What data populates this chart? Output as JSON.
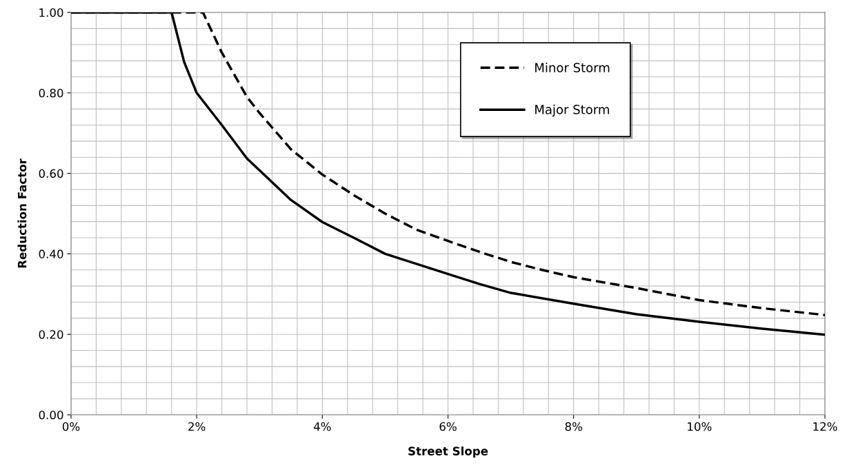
{
  "chart_data": {
    "type": "line",
    "xlabel": "Street Slope",
    "ylabel": "Reduction Factor",
    "xlim": [
      0,
      12
    ],
    "ylim": [
      0,
      1
    ],
    "xticks": [
      {
        "value": 0,
        "label": "0%"
      },
      {
        "value": 2,
        "label": "2%"
      },
      {
        "value": 4,
        "label": "4%"
      },
      {
        "value": 6,
        "label": "6%"
      },
      {
        "value": 8,
        "label": "8%"
      },
      {
        "value": 10,
        "label": "10%"
      },
      {
        "value": 12,
        "label": "12%"
      }
    ],
    "yticks": [
      {
        "value": 0,
        "label": "0.00"
      },
      {
        "value": 0.2,
        "label": "0.20"
      },
      {
        "value": 0.4,
        "label": "0.40"
      },
      {
        "value": 0.6,
        "label": "0.60"
      },
      {
        "value": 0.8,
        "label": "0.80"
      },
      {
        "value": 1,
        "label": "1.00"
      }
    ],
    "grid": true,
    "legend": "top right",
    "marker": "none",
    "series": [
      {
        "name": "Minor Storm",
        "color": "#000000",
        "line_style": "dashed",
        "x": [
          0,
          2.1,
          2.4,
          2.8,
          3,
          3.5,
          4,
          4.5,
          5,
          5.5,
          6,
          6.5,
          7,
          7.5,
          8,
          9,
          10,
          11,
          12
        ],
        "values": [
          1,
          1,
          0.9,
          0.79,
          0.75,
          0.66,
          0.597,
          0.546,
          0.5,
          0.46,
          0.432,
          0.405,
          0.38,
          0.36,
          0.342,
          0.315,
          0.285,
          0.265,
          0.248
        ]
      },
      {
        "name": "Major Storm",
        "color": "#000000",
        "line_style": "solid",
        "x": [
          0,
          1.6,
          1.8,
          2,
          2.4,
          2.8,
          3.5,
          4,
          4.5,
          5,
          6,
          6.5,
          7,
          8,
          9,
          10,
          11,
          12
        ],
        "values": [
          1,
          1,
          0.877,
          0.8,
          0.72,
          0.637,
          0.534,
          0.479,
          0.44,
          0.4,
          0.35,
          0.325,
          0.303,
          0.276,
          0.25,
          0.231,
          0.214,
          0.199
        ]
      }
    ]
  }
}
